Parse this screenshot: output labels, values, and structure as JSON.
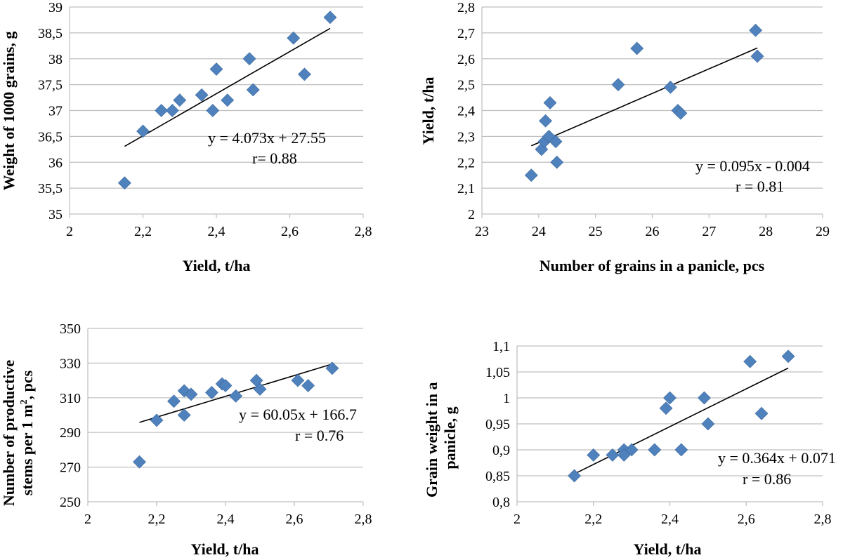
{
  "chart_data": [
    {
      "type": "scatter",
      "xlabel": "Yield, t/ha",
      "ylabel": "Weight of 1000 grains, g",
      "xlim": [
        2,
        2.8
      ],
      "ylim": [
        35,
        39
      ],
      "xticks": [
        "2",
        "2,2",
        "2,4",
        "2,6",
        "2,8"
      ],
      "yticks": [
        "35",
        "35,5",
        "36",
        "36,5",
        "37",
        "37,5",
        "38",
        "38,5",
        "39"
      ],
      "x": [
        2.15,
        2.2,
        2.25,
        2.28,
        2.3,
        2.36,
        2.39,
        2.4,
        2.43,
        2.49,
        2.5,
        2.61,
        2.64,
        2.71
      ],
      "y": [
        35.6,
        36.6,
        37.0,
        37.0,
        37.2,
        37.3,
        37.0,
        37.8,
        37.2,
        38.0,
        37.4,
        38.4,
        37.7,
        38.8
      ],
      "trendline": {
        "slope": 4.073,
        "intercept": 27.55,
        "x_range": [
          2.15,
          2.71
        ]
      },
      "equation": "y = 4.073x + 27.55",
      "r_text": "r= 0.88",
      "grid": true
    },
    {
      "type": "scatter",
      "xlabel": "Number of grains in a panicle, pcs",
      "ylabel": "Yield, t/ha",
      "xlim": [
        23,
        29
      ],
      "ylim": [
        2,
        2.8
      ],
      "xticks": [
        "23",
        "24",
        "25",
        "26",
        "27",
        "28",
        "29"
      ],
      "yticks": [
        "2",
        "2,1",
        "2,2",
        "2,3",
        "2,4",
        "2,5",
        "2,6",
        "2,7",
        "2,8"
      ],
      "x": [
        23.87,
        24.05,
        24.1,
        24.12,
        24.18,
        24.2,
        24.3,
        24.32,
        25.4,
        25.73,
        26.32,
        26.45,
        26.5,
        27.82,
        27.85
      ],
      "y": [
        2.15,
        2.25,
        2.28,
        2.36,
        2.3,
        2.43,
        2.28,
        2.2,
        2.5,
        2.64,
        2.49,
        2.4,
        2.39,
        2.71,
        2.61
      ],
      "trendline": {
        "slope": 0.095,
        "intercept": -0.004,
        "x_range": [
          23.87,
          27.85
        ]
      },
      "equation": "y = 0.095x - 0.004",
      "r_text": "r = 0.81",
      "grid": true
    },
    {
      "type": "scatter",
      "xlabel": "Yield, t/ha",
      "ylabel_line1": "Number of productive",
      "ylabel_line2_pre": "stems per 1 m",
      "ylabel_line2_sup": "2",
      "ylabel_line2_post": ", pcs",
      "xlim": [
        2,
        2.8
      ],
      "ylim": [
        250,
        350
      ],
      "xticks": [
        "2",
        "2,2",
        "2,4",
        "2,6",
        "2,8"
      ],
      "yticks": [
        "250",
        "270",
        "290",
        "310",
        "330",
        "350"
      ],
      "x": [
        2.15,
        2.2,
        2.25,
        2.28,
        2.28,
        2.3,
        2.36,
        2.39,
        2.4,
        2.43,
        2.49,
        2.5,
        2.61,
        2.64,
        2.71
      ],
      "y": [
        273,
        297,
        308,
        314,
        300,
        312,
        313,
        318,
        317,
        311,
        320,
        315,
        320,
        317,
        327
      ],
      "trendline": {
        "slope": 60.05,
        "intercept": 166.7,
        "x_range": [
          2.15,
          2.71
        ]
      },
      "equation": "y = 60.05x + 166.7",
      "r_text": "r = 0.76",
      "grid": true
    },
    {
      "type": "scatter",
      "xlabel": "Yield, t/ha",
      "ylabel_line1": "Grain weight in a",
      "ylabel_line2": "panicle, g",
      "xlim": [
        2,
        2.8
      ],
      "ylim": [
        0.8,
        1.1
      ],
      "xticks": [
        "2",
        "2,2",
        "2,4",
        "2,6",
        "2,8"
      ],
      "yticks": [
        "0,8",
        "0,85",
        "0,9",
        "0,95",
        "1",
        "1,05",
        "1,1"
      ],
      "x": [
        2.15,
        2.2,
        2.25,
        2.28,
        2.28,
        2.3,
        2.36,
        2.39,
        2.4,
        2.43,
        2.49,
        2.5,
        2.61,
        2.64,
        2.71
      ],
      "y": [
        0.85,
        0.89,
        0.89,
        0.9,
        0.89,
        0.9,
        0.9,
        0.98,
        1.0,
        0.9,
        1.0,
        0.95,
        1.07,
        0.97,
        1.08
      ],
      "trendline": {
        "slope": 0.364,
        "intercept": 0.071,
        "x_range": [
          2.15,
          2.71
        ]
      },
      "equation": "y = 0.364x + 0.071",
      "r_text": "r = 0.86",
      "grid": true
    }
  ]
}
